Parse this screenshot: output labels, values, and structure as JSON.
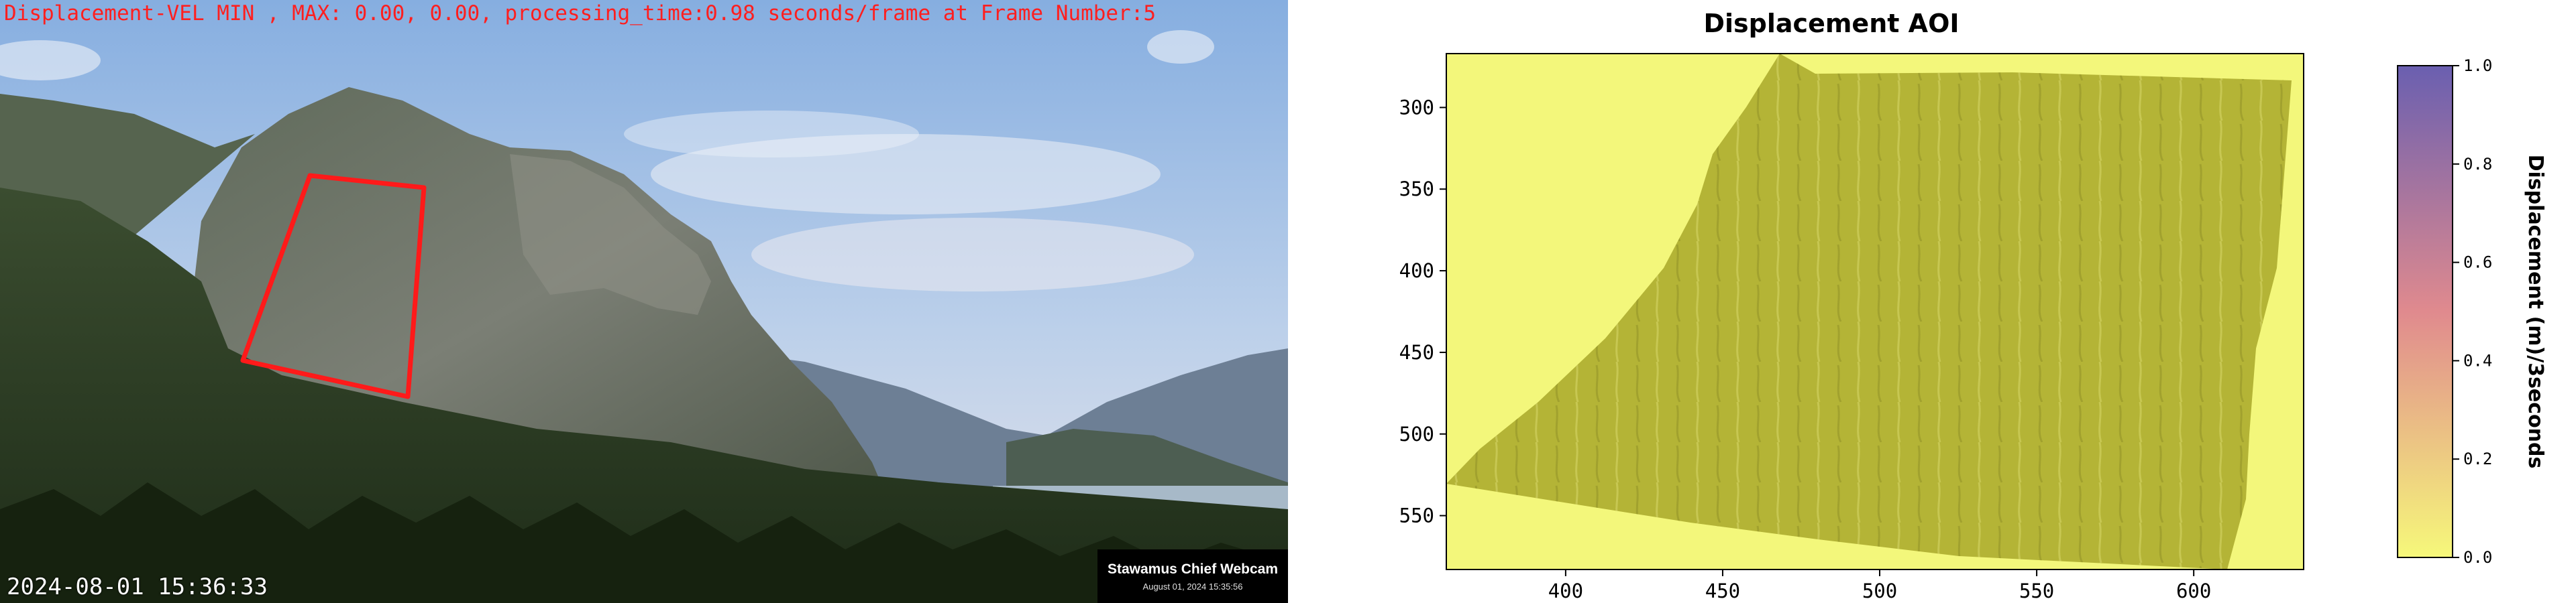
{
  "webcam": {
    "overlay_title": "Displacement-VEL MIN , MAX: 0.00, 0.00, processing_time:0.98 seconds/frame at Frame Number:5",
    "overlay_timestamp": "2024-08-01 15:36:33",
    "camera_name": "Stawamus Chief Webcam",
    "camera_date": "August 01, 2024 15:35:56",
    "aoi_color": "#ff1a1a"
  },
  "plot": {
    "title": "Displacement AOI",
    "colorbar_label": "Displacement (m)/3seconds",
    "colorbar_ticks": [
      "0.0",
      "0.2",
      "0.4",
      "0.6",
      "0.8",
      "1.0"
    ],
    "colorbar_colors": {
      "low": "#f6f87a",
      "mid": "#e08a8e",
      "high": "#6a5fb0"
    },
    "field_color": "#b4b436",
    "background_color": "#f3f77b"
  },
  "chart_data": {
    "type": "heatmap",
    "title": "Displacement AOI",
    "x_ticks": [
      400,
      450,
      500,
      550,
      600
    ],
    "y_ticks": [
      300,
      350,
      400,
      450,
      500,
      550
    ],
    "xlim": [
      362,
      635
    ],
    "ylim": [
      583,
      267
    ],
    "colorbar": {
      "label": "Displacement (m)/3seconds",
      "range": [
        0.0,
        1.0
      ],
      "ticks": [
        0.0,
        0.2,
        0.4,
        0.6,
        0.8,
        1.0
      ]
    },
    "values_min": 0.0,
    "values_max": 0.0
  }
}
